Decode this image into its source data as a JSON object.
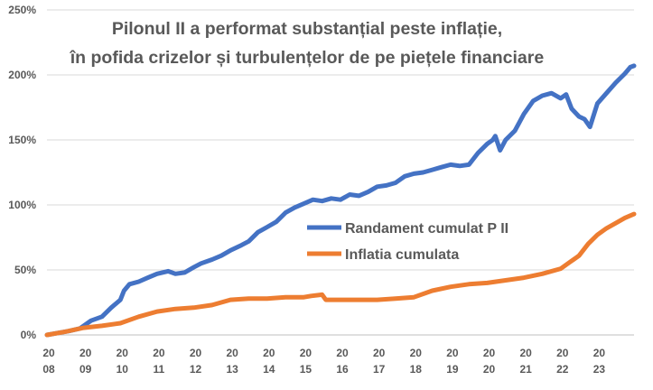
{
  "chart_data": {
    "type": "line",
    "title": [
      "Pilonul II a performat substanțial peste inflație,",
      "în pofida crizelor și turbulențelor de pe piețele financiare"
    ],
    "xlabel": "",
    "ylabel": "",
    "y_ticks": [
      0,
      50,
      100,
      150,
      200,
      250
    ],
    "y_tick_labels": [
      "0%",
      "50%",
      "100%",
      "150%",
      "200%",
      "250%"
    ],
    "ylim": [
      0,
      250
    ],
    "xlim": [
      2008.0,
      2024.0
    ],
    "x_tick_positions": [
      2008.0,
      2009.0,
      2010.0,
      2011.0,
      2012.0,
      2013.0,
      2014.0,
      2015.0,
      2016.0,
      2017.0,
      2018.0,
      2019.0,
      2020.0,
      2021.0,
      2022.0,
      2023.0
    ],
    "x_tick_labels": [
      [
        "20",
        "08"
      ],
      [
        "20",
        "09"
      ],
      [
        "20",
        "10"
      ],
      [
        "20",
        "11"
      ],
      [
        "20",
        "12"
      ],
      [
        "20",
        "13"
      ],
      [
        "20",
        "14"
      ],
      [
        "20",
        "15"
      ],
      [
        "20",
        "16"
      ],
      [
        "20",
        "17"
      ],
      [
        "20",
        "18"
      ],
      [
        "20",
        "19"
      ],
      [
        "20",
        "20"
      ],
      [
        "20",
        "21"
      ],
      [
        "20",
        "22"
      ],
      [
        "20",
        "23"
      ]
    ],
    "grid": true,
    "legend_position": "center-right",
    "series": [
      {
        "name": "Randament cumulat P II",
        "color": "#4472c4",
        "x": [
          2008.0,
          2008.3,
          2008.6,
          2008.9,
          2009.2,
          2009.5,
          2009.75,
          2010.0,
          2010.1,
          2010.25,
          2010.5,
          2010.75,
          2011.0,
          2011.3,
          2011.5,
          2011.75,
          2012.0,
          2012.2,
          2012.5,
          2012.75,
          2013.0,
          2013.3,
          2013.5,
          2013.75,
          2014.0,
          2014.25,
          2014.5,
          2014.75,
          2015.0,
          2015.25,
          2015.5,
          2015.75,
          2016.0,
          2016.25,
          2016.5,
          2016.75,
          2017.0,
          2017.25,
          2017.5,
          2017.75,
          2018.0,
          2018.25,
          2018.5,
          2018.75,
          2019.0,
          2019.25,
          2019.5,
          2019.75,
          2020.0,
          2020.15,
          2020.22,
          2020.35,
          2020.5,
          2020.75,
          2021.0,
          2021.25,
          2021.5,
          2021.75,
          2022.0,
          2022.15,
          2022.3,
          2022.5,
          2022.65,
          2022.8,
          2023.0,
          2023.25,
          2023.5,
          2023.75,
          2023.9,
          2024.0
        ],
        "y": [
          0,
          1.5,
          3,
          5,
          11,
          14,
          21,
          27,
          34,
          39,
          41,
          44,
          47,
          49,
          47,
          48,
          52,
          55,
          58,
          61,
          65,
          69,
          72,
          79,
          83,
          87,
          94,
          98,
          101,
          104,
          103,
          105,
          104,
          108,
          107,
          110,
          114,
          115,
          117,
          122,
          124,
          125,
          127,
          129,
          131,
          130,
          131,
          140,
          147,
          150,
          153,
          142,
          150,
          157,
          170,
          180,
          184,
          186,
          182,
          185,
          174,
          168,
          166,
          160,
          178,
          186,
          194,
          201,
          206,
          207
        ]
      },
      {
        "name": "Inflatia cumulata",
        "color": "#ed7d31",
        "x": [
          2008.0,
          2008.5,
          2009.0,
          2009.5,
          2010.0,
          2010.5,
          2011.0,
          2011.5,
          2012.0,
          2012.5,
          2013.0,
          2013.5,
          2014.0,
          2014.5,
          2015.0,
          2015.2,
          2015.5,
          2015.6,
          2015.75,
          2016.0,
          2016.5,
          2017.0,
          2017.5,
          2018.0,
          2018.5,
          2019.0,
          2019.5,
          2020.0,
          2020.5,
          2021.0,
          2021.5,
          2022.0,
          2022.25,
          2022.5,
          2022.75,
          2023.0,
          2023.25,
          2023.5,
          2023.75,
          2024.0
        ],
        "y": [
          0,
          2.5,
          5.5,
          7,
          9,
          14,
          18,
          20,
          21,
          23,
          27,
          28,
          28,
          29,
          29,
          30,
          31,
          27,
          27,
          27,
          27,
          27,
          28,
          29,
          34,
          37,
          39,
          40,
          42,
          44,
          47,
          51,
          56,
          61,
          70,
          77,
          82,
          86,
          90,
          93
        ]
      }
    ]
  }
}
